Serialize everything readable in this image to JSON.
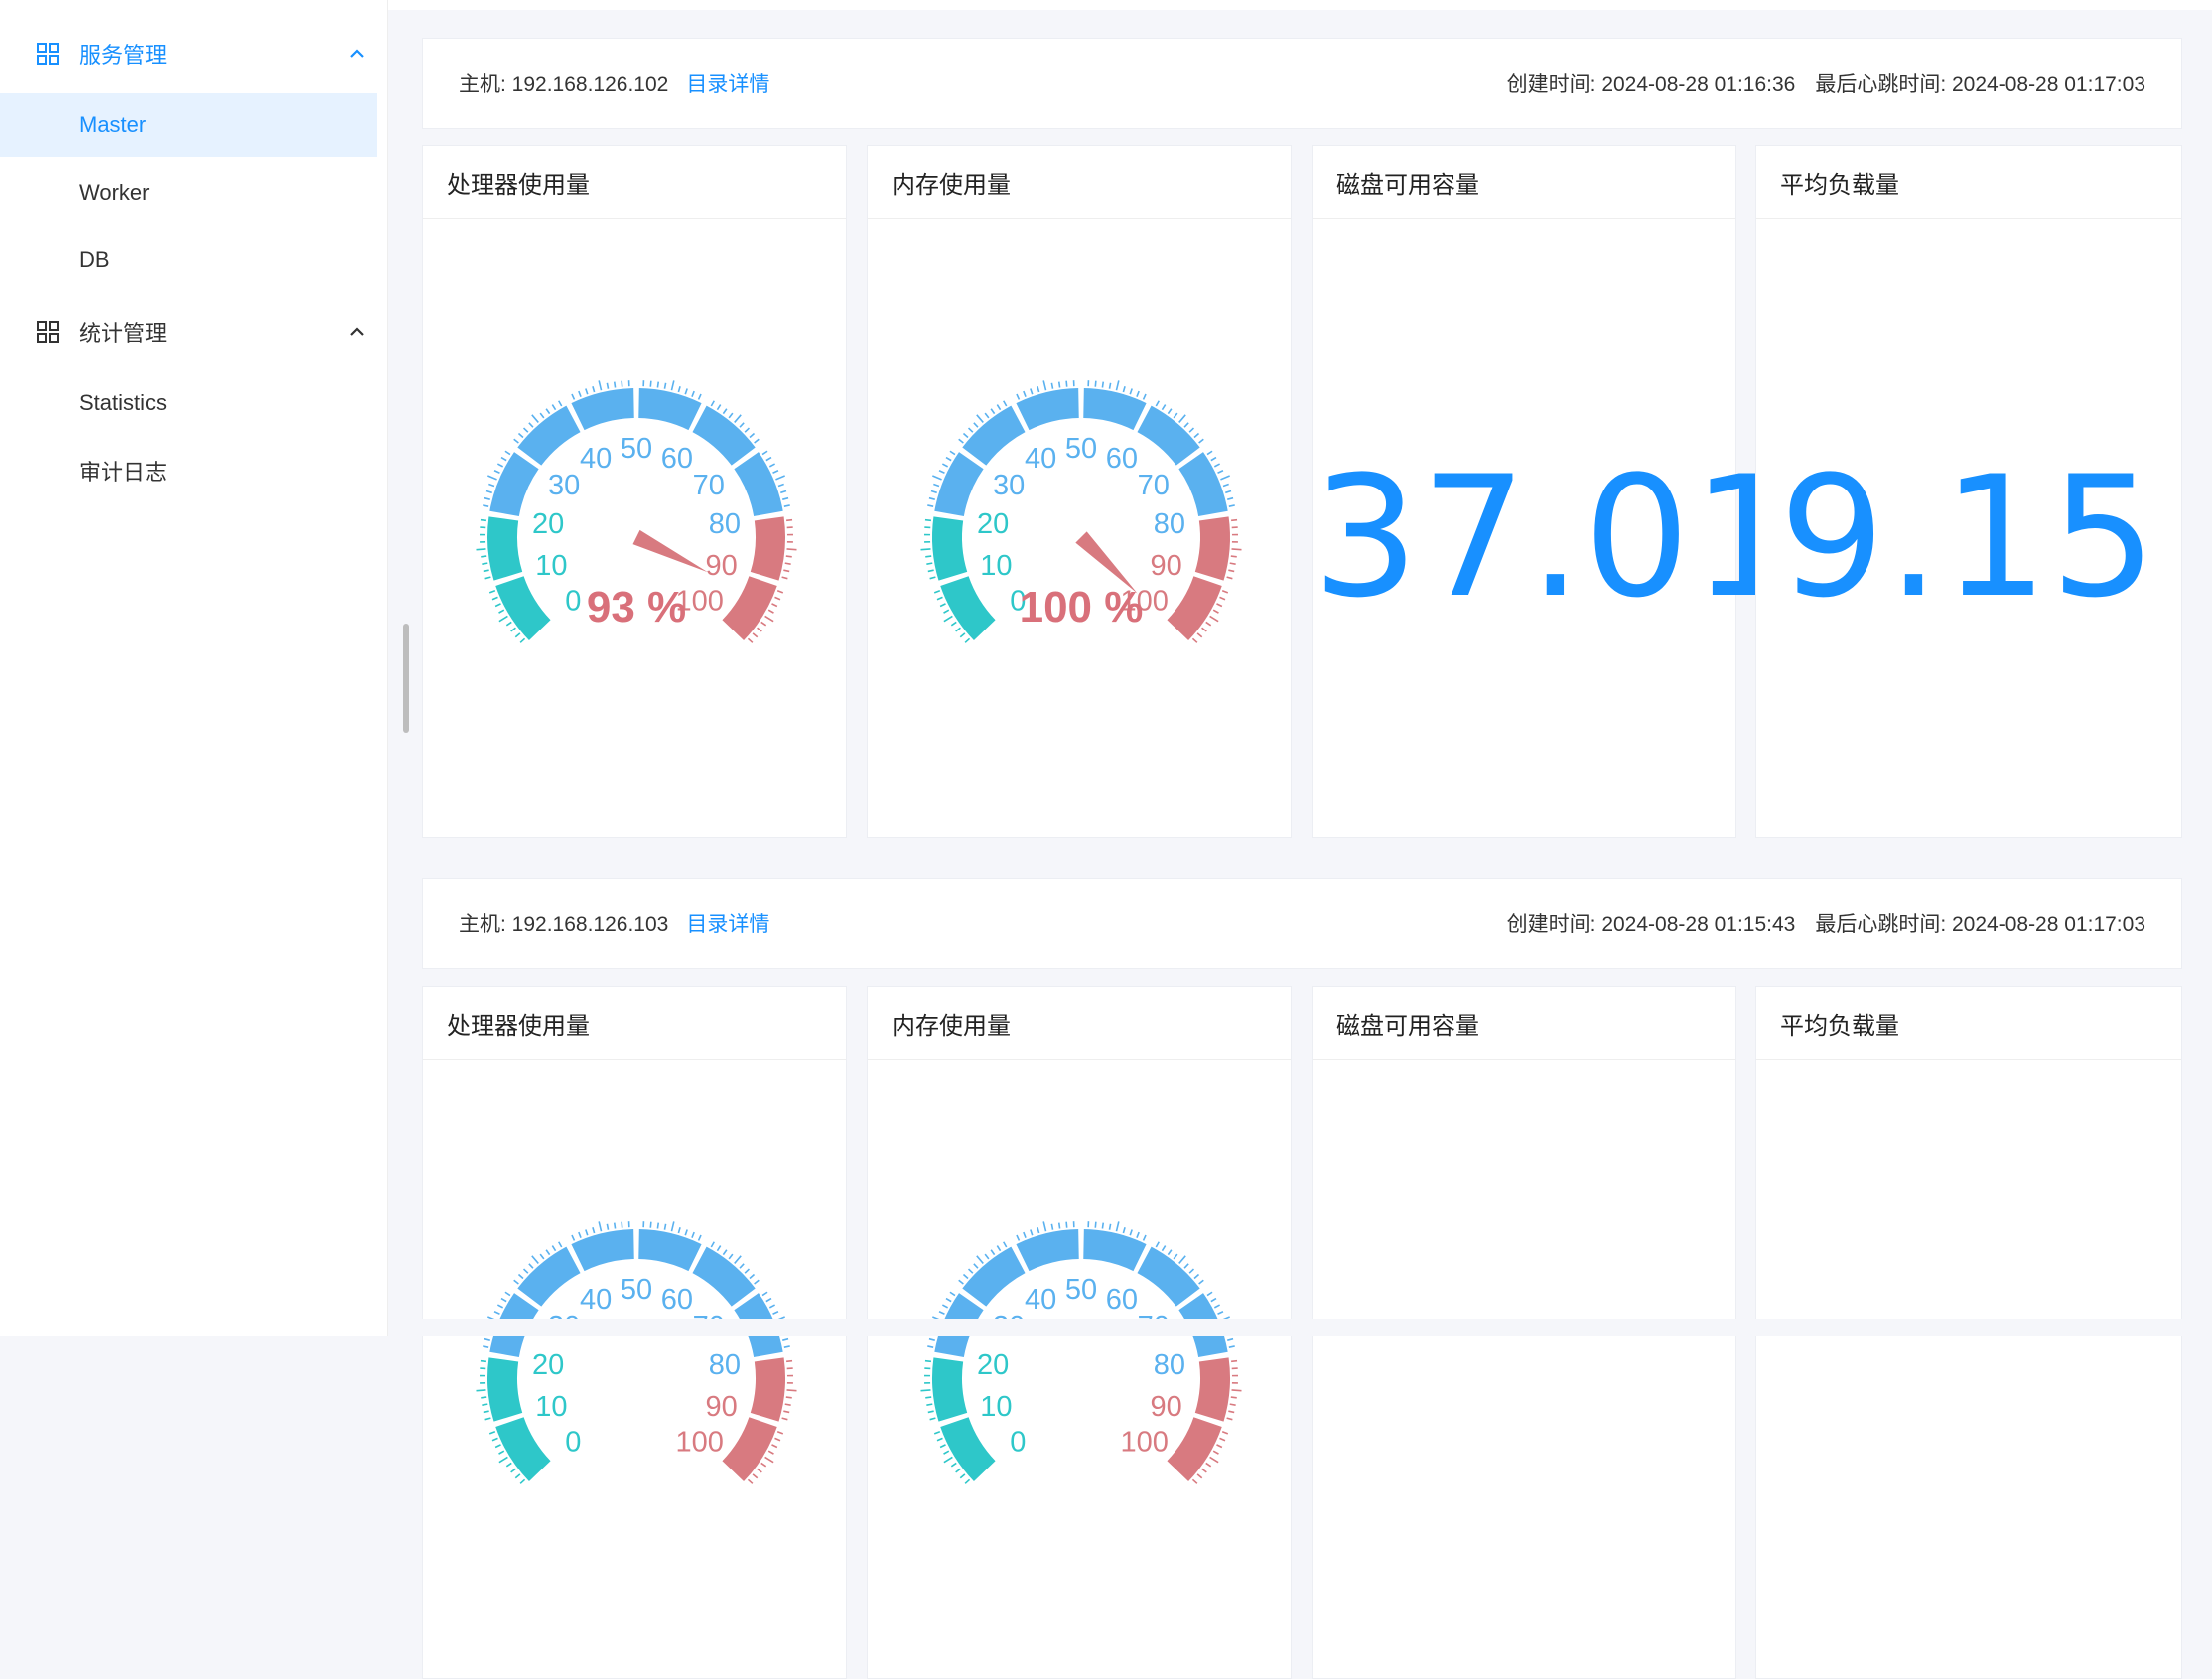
{
  "sidebar": {
    "groups": [
      {
        "label": "服务管理",
        "items": [
          "Master",
          "Worker",
          "DB"
        ]
      },
      {
        "label": "统计管理",
        "items": [
          "Statistics",
          "审计日志"
        ]
      }
    ]
  },
  "hosts": [
    {
      "host_label": "主机: 192.168.126.102",
      "detail_link": "目录详情",
      "created": "创建时间: 2024-08-28 01:16:36",
      "heartbeat": "最后心跳时间: 2024-08-28 01:17:03",
      "cards": {
        "cpu": {
          "title": "处理器使用量",
          "value": 93,
          "label": "93 %"
        },
        "mem": {
          "title": "内存使用量",
          "value": 100,
          "label": "100 %"
        },
        "disk": {
          "title": "磁盘可用容量",
          "value": "37.01"
        },
        "load": {
          "title": "平均负载量",
          "value": "9.15"
        }
      }
    },
    {
      "host_label": "主机: 192.168.126.103",
      "detail_link": "目录详情",
      "created": "创建时间: 2024-08-28 01:15:43",
      "heartbeat": "最后心跳时间: 2024-08-28 01:17:03",
      "cards": {
        "cpu": {
          "title": "处理器使用量"
        },
        "mem": {
          "title": "内存使用量"
        },
        "disk": {
          "title": "磁盘可用容量"
        },
        "load": {
          "title": "平均负载量"
        }
      }
    }
  ],
  "gauge": {
    "min": 0,
    "max": 100,
    "tick_labels": [
      "0",
      "10",
      "20",
      "30",
      "40",
      "50",
      "60",
      "70",
      "80",
      "90",
      "100"
    ],
    "colors": {
      "low": "#2ec7c9",
      "mid": "#5ab1ef",
      "high": "#d87a80"
    }
  }
}
